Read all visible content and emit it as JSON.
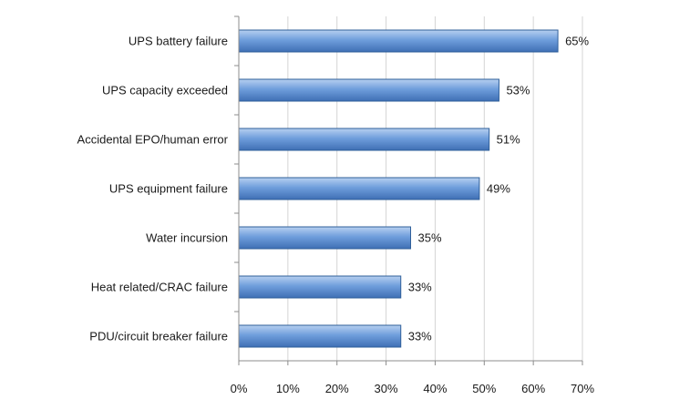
{
  "chart_data": {
    "type": "bar",
    "orientation": "horizontal",
    "categories": [
      "UPS battery failure",
      "UPS capacity exceeded",
      "Accidental EPO/human error",
      "UPS equipment failure",
      "Water incursion",
      "Heat related/CRAC failure",
      "PDU/circuit breaker failure"
    ],
    "values": [
      65,
      53,
      51,
      49,
      35,
      33,
      33
    ],
    "value_labels": [
      "65%",
      "53%",
      "51%",
      "49%",
      "35%",
      "33%",
      "33%"
    ],
    "xlim": [
      0,
      70
    ],
    "x_ticks": [
      0,
      10,
      20,
      30,
      40,
      50,
      60,
      70
    ],
    "x_tick_labels": [
      "0%",
      "10%",
      "20%",
      "30%",
      "40%",
      "50%",
      "60%",
      "70%"
    ],
    "grid": "vertical",
    "legend": "none",
    "colors": {
      "bar_light": "#b7d0f0",
      "bar_mid": "#6f9edc",
      "bar_dark": "#3f6fb4"
    }
  }
}
